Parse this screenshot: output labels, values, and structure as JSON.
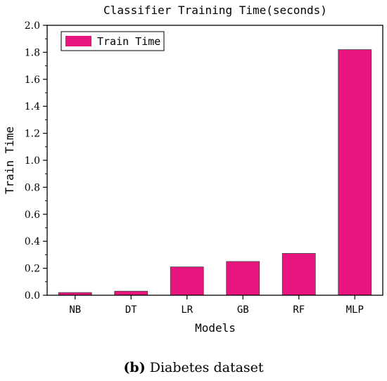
{
  "chart_data": {
    "type": "bar",
    "title": "Classifier Training Time(seconds)",
    "xlabel": "Models",
    "ylabel": "Train Time",
    "categories": [
      "NB",
      "DT",
      "LR",
      "GB",
      "RF",
      "MLP"
    ],
    "series": [
      {
        "name": "Train Time",
        "values": [
          0.02,
          0.03,
          0.21,
          0.25,
          0.31,
          1.82
        ]
      }
    ],
    "ylim": [
      0,
      2.0
    ],
    "yticks": [
      "0.0",
      "0.2",
      "0.4",
      "0.6",
      "0.8",
      "1.0",
      "1.2",
      "1.4",
      "1.6",
      "1.8",
      "2.0"
    ],
    "legend_position": "top-left",
    "grid": false,
    "bar_color": "#e8157f"
  },
  "caption": {
    "letter": "(b)",
    "text": " Diabetes dataset"
  }
}
